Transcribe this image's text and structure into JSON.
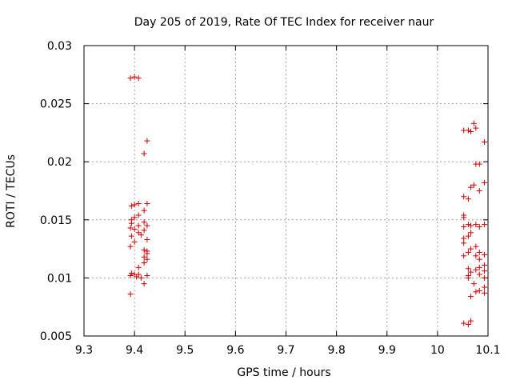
{
  "chart_data": {
    "type": "scatter",
    "title": "Day 205 of 2019, Rate Of TEC Index for receiver naur",
    "xlabel": "GPS time / hours",
    "ylabel": "ROTI / TECUs",
    "xlim": [
      9.3,
      10.1
    ],
    "ylim": [
      0.005,
      0.03
    ],
    "xticks": [
      "9.3",
      "9.4",
      "9.5",
      "9.6",
      "9.7",
      "9.8",
      "9.9",
      "10",
      "10.1"
    ],
    "yticks": [
      "0.005",
      "0.01",
      "0.015",
      "0.02",
      "0.025",
      "0.03"
    ],
    "grid": true,
    "marker": "+",
    "color": "#cc0000",
    "series": [
      {
        "name": "naur",
        "points": [
          [
            9.392,
            0.0272
          ],
          [
            9.4,
            0.0273
          ],
          [
            9.408,
            0.0272
          ],
          [
            9.425,
            0.0218
          ],
          [
            9.419,
            0.0207
          ],
          [
            9.394,
            0.0162
          ],
          [
            9.4,
            0.0163
          ],
          [
            9.408,
            0.0164
          ],
          [
            9.425,
            0.0164
          ],
          [
            9.419,
            0.0158
          ],
          [
            9.408,
            0.0154
          ],
          [
            9.4,
            0.0152
          ],
          [
            9.394,
            0.015
          ],
          [
            9.419,
            0.0148
          ],
          [
            9.394,
            0.0147
          ],
          [
            9.408,
            0.0145
          ],
          [
            9.425,
            0.0145
          ],
          [
            9.392,
            0.0143
          ],
          [
            9.4,
            0.0142
          ],
          [
            9.419,
            0.0141
          ],
          [
            9.408,
            0.0139
          ],
          [
            9.413,
            0.0137
          ],
          [
            9.394,
            0.0136
          ],
          [
            9.425,
            0.0133
          ],
          [
            9.4,
            0.0131
          ],
          [
            9.392,
            0.0127
          ],
          [
            9.419,
            0.0124
          ],
          [
            9.425,
            0.0123
          ],
          [
            9.425,
            0.0121
          ],
          [
            9.419,
            0.0118
          ],
          [
            9.425,
            0.0116
          ],
          [
            9.419,
            0.0113
          ],
          [
            9.408,
            0.0109
          ],
          [
            9.394,
            0.0104
          ],
          [
            9.4,
            0.0103
          ],
          [
            9.392,
            0.0102
          ],
          [
            9.408,
            0.0103
          ],
          [
            9.425,
            0.0102
          ],
          [
            9.404,
            0.0101
          ],
          [
            9.413,
            0.01
          ],
          [
            9.419,
            0.0095
          ],
          [
            9.392,
            0.0086
          ],
          [
            10.072,
            0.0233
          ],
          [
            10.052,
            0.0227
          ],
          [
            10.061,
            0.0227
          ],
          [
            10.066,
            0.0226
          ],
          [
            10.076,
            0.0229
          ],
          [
            10.093,
            0.0217
          ],
          [
            10.076,
            0.0198
          ],
          [
            10.083,
            0.0198
          ],
          [
            10.093,
            0.0182
          ],
          [
            10.072,
            0.018
          ],
          [
            10.066,
            0.0178
          ],
          [
            10.083,
            0.0175
          ],
          [
            10.052,
            0.017
          ],
          [
            10.061,
            0.0168
          ],
          [
            10.052,
            0.0154
          ],
          [
            10.052,
            0.0152
          ],
          [
            10.061,
            0.0146
          ],
          [
            10.066,
            0.0145
          ],
          [
            10.076,
            0.0146
          ],
          [
            10.093,
            0.0146
          ],
          [
            10.052,
            0.0144
          ],
          [
            10.083,
            0.0144
          ],
          [
            10.066,
            0.0139
          ],
          [
            10.052,
            0.0134
          ],
          [
            10.061,
            0.0136
          ],
          [
            10.052,
            0.013
          ],
          [
            10.076,
            0.0127
          ],
          [
            10.066,
            0.0125
          ],
          [
            10.061,
            0.0122
          ],
          [
            10.083,
            0.0122
          ],
          [
            10.093,
            0.012
          ],
          [
            10.052,
            0.0119
          ],
          [
            10.076,
            0.0119
          ],
          [
            10.083,
            0.0116
          ],
          [
            10.093,
            0.0111
          ],
          [
            10.083,
            0.0109
          ],
          [
            10.061,
            0.0108
          ],
          [
            10.076,
            0.0107
          ],
          [
            10.093,
            0.0106
          ],
          [
            10.066,
            0.0105
          ],
          [
            10.061,
            0.0102
          ],
          [
            10.083,
            0.0103
          ],
          [
            10.061,
            0.01
          ],
          [
            10.093,
            0.01
          ],
          [
            10.072,
            0.0095
          ],
          [
            10.093,
            0.0092
          ],
          [
            10.083,
            0.0089
          ],
          [
            10.076,
            0.0088
          ],
          [
            10.093,
            0.0087
          ],
          [
            10.066,
            0.0084
          ],
          [
            10.052,
            0.0061
          ],
          [
            10.061,
            0.006
          ],
          [
            10.066,
            0.0063
          ]
        ]
      }
    ]
  }
}
